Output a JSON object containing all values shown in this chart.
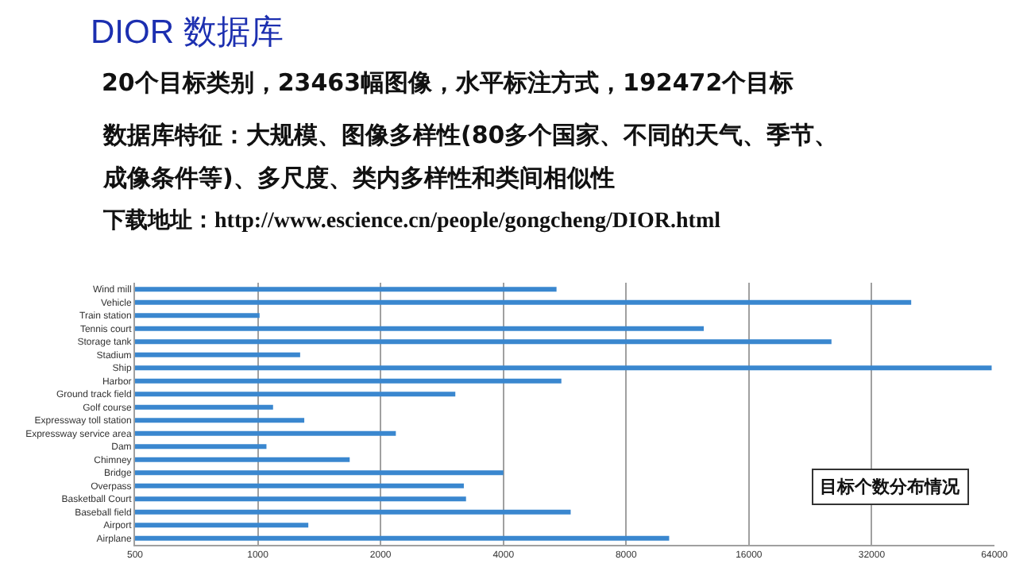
{
  "chart_data": {
    "type": "bar",
    "orientation": "horizontal",
    "log": "x",
    "grid": "x",
    "title": "DIOR 数据库",
    "annotations": [
      "20个目标类别，23463幅图像，水平标注方式，192472个目标",
      "数据库特征：大规模、图像多样性(80多个国家、不同的天气、季节、",
      "成像条件等)、多尺度、类内多样性和类间相似性",
      "下载地址：http://www.escience.cn/people/gongcheng/DIOR.html",
      "目标个数分布情况"
    ],
    "categories": [
      "Wind mill",
      "Vehicle",
      "Train station",
      "Tennis court",
      "Storage tank",
      "Stadium",
      "Ship",
      "Harbor",
      "Ground track field",
      "Golf course",
      "Expressway toll station",
      "Expressway service area",
      "Dam",
      "Chimney",
      "Bridge",
      "Overpass",
      "Basketball Court",
      "Baseball field",
      "Airport",
      "Airplane"
    ],
    "values": [
      5400,
      40000,
      1010,
      12400,
      25500,
      1270,
      63000,
      5550,
      3050,
      1090,
      1300,
      2180,
      1050,
      1680,
      4000,
      3200,
      3240,
      5850,
      1330,
      10200
    ],
    "color": "#3a87cf",
    "xlim": [
      500,
      64000
    ],
    "xticks": [
      500,
      1000,
      2000,
      4000,
      8000,
      16000,
      32000,
      64000
    ]
  }
}
